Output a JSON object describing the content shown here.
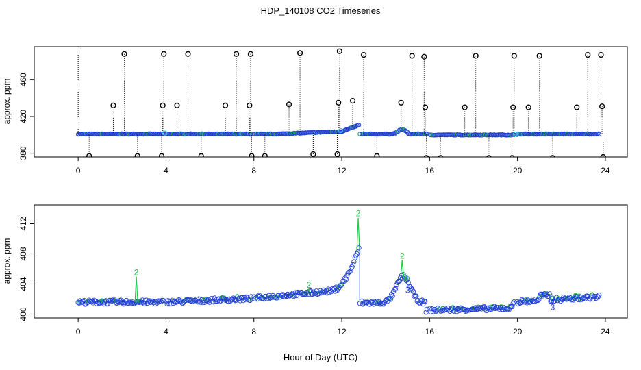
{
  "title": "HDP_140108  CO2 Timeseries",
  "xlabel": "Hour of Day (UTC)",
  "colors": {
    "black": "#000000",
    "blue": "#1f3fd0",
    "green": "#22c94a",
    "cyan": "#21c8d6"
  },
  "chart_data": [
    {
      "type": "scatter",
      "ylabel": "approx. ppm",
      "xlim": [
        -2,
        25
      ],
      "ylim": [
        376,
        496
      ],
      "xticks": [
        0,
        4,
        8,
        12,
        16,
        20,
        24
      ],
      "yticks": [
        380,
        420,
        460
      ],
      "xtick_labels": [
        "0",
        "4",
        "8",
        "12",
        "16",
        "20",
        "24"
      ],
      "ytick_labels": [
        "380",
        "420",
        "460"
      ],
      "series": [
        {
          "marker": "circle-black-with-dotted-drop",
          "x": [
            0.5,
            1.6,
            2.1,
            2.7,
            3.8,
            3.85,
            3.9,
            4.5,
            5.0,
            5.6,
            6.7,
            7.2,
            7.8,
            7.85,
            7.9,
            8.5,
            9.6,
            10.1,
            10.7,
            11.8,
            11.85,
            11.9,
            12.5,
            13.0,
            13.6,
            14.7,
            15.2,
            15.75,
            15.8,
            15.85,
            16.5,
            17.6,
            18.1,
            18.7,
            19.75,
            19.8,
            19.85,
            20.5,
            21.0,
            21.6,
            22.7,
            23.2,
            23.8,
            23.85,
            23.9
          ],
          "y": [
            377,
            432,
            488,
            377,
            377,
            432,
            488,
            432,
            488,
            377,
            432,
            488,
            432,
            488,
            377,
            377,
            433,
            489,
            379,
            379,
            435,
            491,
            437,
            487,
            377,
            435,
            486,
            485,
            430,
            375,
            375,
            430,
            486,
            375,
            375,
            430,
            486,
            430,
            486,
            375,
            430,
            487,
            487,
            431,
            376
          ]
        }
      ]
    },
    {
      "type": "scatter",
      "ylabel": "approx. ppm",
      "xlim": [
        -2,
        25
      ],
      "ylim": [
        399.5,
        414.5
      ],
      "xticks": [
        0,
        4,
        8,
        12,
        16,
        20,
        24
      ],
      "yticks": [
        400,
        404,
        408,
        412
      ],
      "xtick_labels": [
        "0",
        "4",
        "8",
        "12",
        "16",
        "20",
        "24"
      ],
      "ytick_labels": [
        "400",
        "404",
        "408",
        "412"
      ],
      "series": [
        {
          "marker": "2-green-label",
          "label_text": "2",
          "x": [
            2.65,
            10.5,
            12.75,
            14.75
          ],
          "y": [
            405.0,
            403.3,
            412.8,
            407.2
          ]
        },
        {
          "marker": "3-blue-label",
          "label_text": "3",
          "x": [
            15.0,
            21.6
          ],
          "y": [
            403.2,
            400.9
          ]
        }
      ]
    }
  ]
}
